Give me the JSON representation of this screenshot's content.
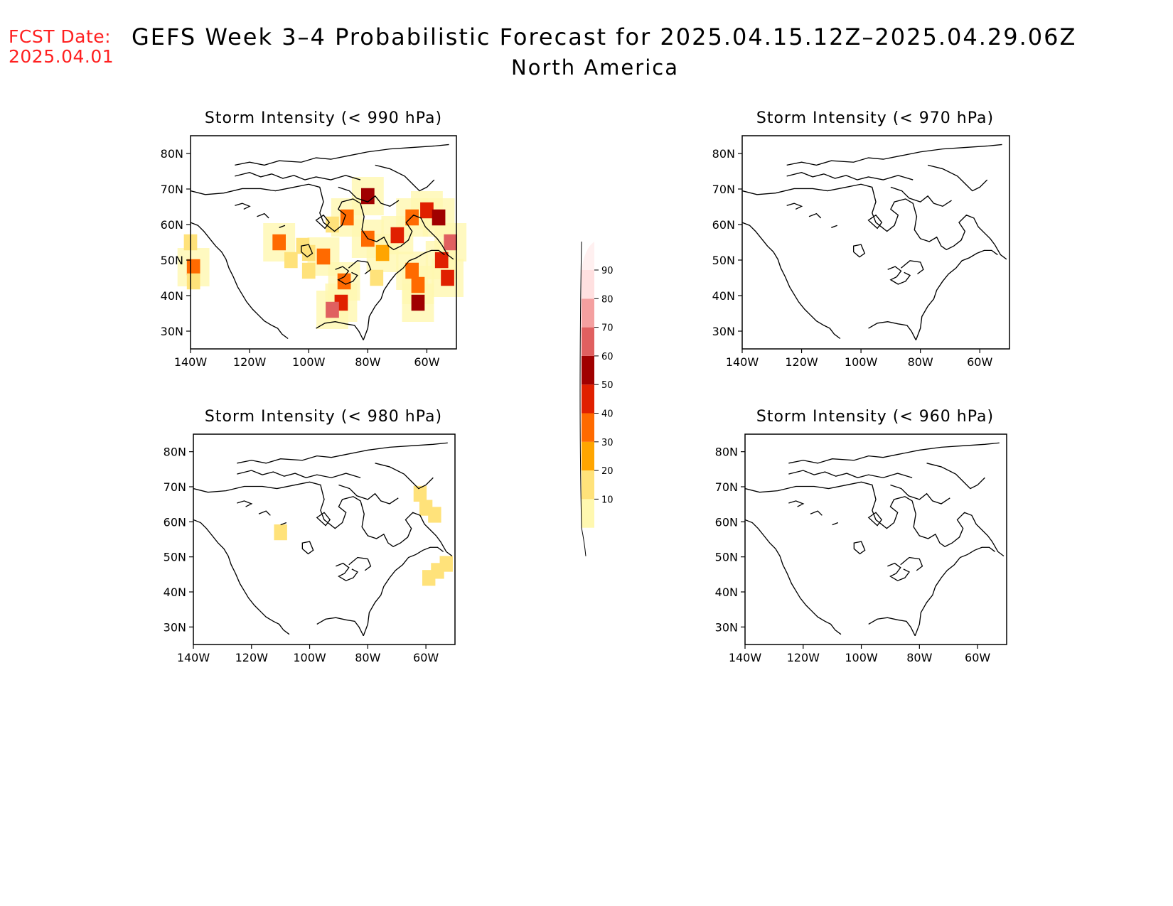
{
  "header": {
    "fcst_label": "FCST Date:",
    "fcst_date": "2025.04.01",
    "title": "GEFS Week 3–4 Probabilistic Forecast for 2025.04.15.12Z–2025.04.29.06Z",
    "subtitle": "North America"
  },
  "panels": [
    {
      "title": "Storm Intensity (< 990 hPa)",
      "id": "p990"
    },
    {
      "title": "Storm Intensity (< 970 hPa)",
      "id": "p970"
    },
    {
      "title": "Storm Intensity (< 980 hPa)",
      "id": "p980"
    },
    {
      "title": "Storm Intensity (< 960 hPa)",
      "id": "p960"
    }
  ],
  "axes": {
    "lat_labels": [
      "80N",
      "70N",
      "60N",
      "50N",
      "40N",
      "30N"
    ],
    "lon_labels": [
      "140W",
      "120W",
      "100W",
      "80W",
      "60W"
    ]
  },
  "colorbar": {
    "levels": [
      "10",
      "20",
      "30",
      "40",
      "50",
      "60",
      "70",
      "80",
      "90"
    ],
    "colors": [
      "#fff8b0",
      "#ffe27a",
      "#ffa500",
      "#ff6a00",
      "#e02000",
      "#a00000",
      "#e06060",
      "#f4a0a0",
      "#ffe0e0"
    ]
  },
  "chart_data": {
    "type": "heatmap",
    "units": "probability (%)",
    "fields": [
      {
        "panel": "p990",
        "cells": [
          {
            "lat": 55,
            "lon": -140,
            "prob": 20
          },
          {
            "lat": 48,
            "lon": -139,
            "prob": 40
          },
          {
            "lat": 44,
            "lon": -139,
            "prob": 20
          },
          {
            "lat": 55,
            "lon": -110,
            "prob": 40
          },
          {
            "lat": 54,
            "lon": -102,
            "prob": 20
          },
          {
            "lat": 52,
            "lon": -100,
            "prob": 20
          },
          {
            "lat": 50,
            "lon": -106,
            "prob": 20
          },
          {
            "lat": 47,
            "lon": -100,
            "prob": 20
          },
          {
            "lat": 51,
            "lon": -95,
            "prob": 40
          },
          {
            "lat": 44,
            "lon": -88,
            "prob": 40
          },
          {
            "lat": 38,
            "lon": -89,
            "prob": 50
          },
          {
            "lat": 36,
            "lon": -92,
            "prob": 70
          },
          {
            "lat": 60,
            "lon": -92,
            "prob": 20
          },
          {
            "lat": 62,
            "lon": -87,
            "prob": 40
          },
          {
            "lat": 68,
            "lon": -80,
            "prob": 60
          },
          {
            "lat": 56,
            "lon": -80,
            "prob": 40
          },
          {
            "lat": 57,
            "lon": -70,
            "prob": 50
          },
          {
            "lat": 62,
            "lon": -65,
            "prob": 40
          },
          {
            "lat": 64,
            "lon": -60,
            "prob": 50
          },
          {
            "lat": 62,
            "lon": -56,
            "prob": 60
          },
          {
            "lat": 55,
            "lon": -52,
            "prob": 70
          },
          {
            "lat": 50,
            "lon": -55,
            "prob": 50
          },
          {
            "lat": 45,
            "lon": -53,
            "prob": 50
          },
          {
            "lat": 43,
            "lon": -63,
            "prob": 40
          },
          {
            "lat": 38,
            "lon": -63,
            "prob": 60
          },
          {
            "lat": 47,
            "lon": -65,
            "prob": 40
          },
          {
            "lat": 52,
            "lon": -75,
            "prob": 30
          },
          {
            "lat": 45,
            "lon": -77,
            "prob": 20
          }
        ]
      },
      {
        "panel": "p970",
        "cells": []
      },
      {
        "panel": "p980",
        "cells": [
          {
            "lat": 57,
            "lon": -110,
            "prob": 20
          },
          {
            "lat": 68,
            "lon": -62,
            "prob": 20
          },
          {
            "lat": 64,
            "lon": -60,
            "prob": 20
          },
          {
            "lat": 62,
            "lon": -57,
            "prob": 20
          },
          {
            "lat": 48,
            "lon": -53,
            "prob": 20
          },
          {
            "lat": 44,
            "lon": -59,
            "prob": 20
          },
          {
            "lat": 46,
            "lon": -56,
            "prob": 20
          }
        ]
      },
      {
        "panel": "p960",
        "cells": []
      }
    ]
  }
}
